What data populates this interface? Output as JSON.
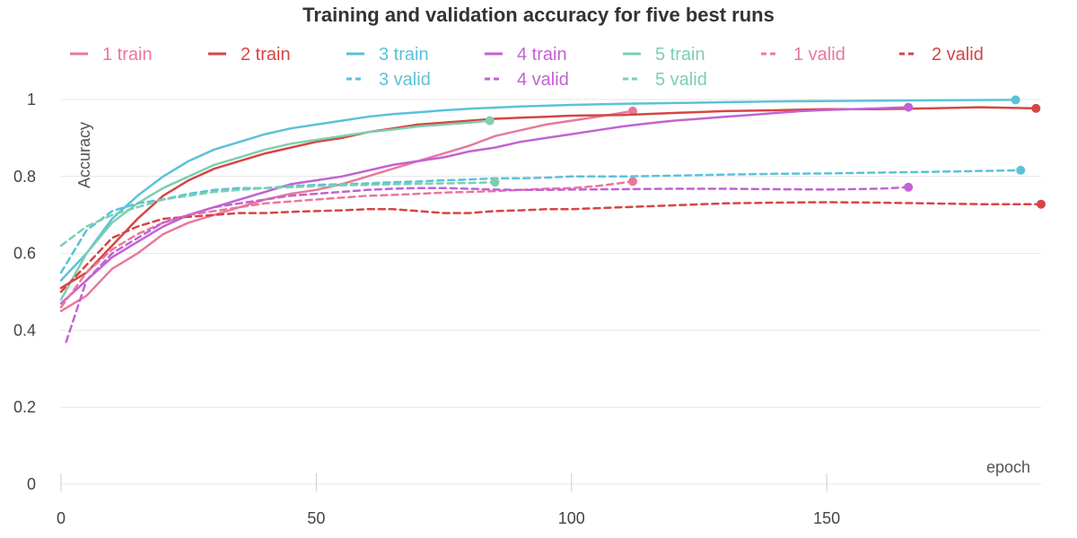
{
  "chart_data": {
    "type": "line",
    "title": "Training and validation accuracy for five best runs",
    "xlabel": "epoch",
    "ylabel": "Accuracy",
    "xlim": [
      0,
      192
    ],
    "ylim": [
      0,
      1.1
    ],
    "xticks": [
      0,
      50,
      100,
      150
    ],
    "yticks": [
      0,
      0.2,
      0.4,
      0.6,
      0.8,
      1
    ],
    "ytick_labels": [
      "0",
      "0.2",
      "0.4",
      "0.6",
      "0.8",
      "1"
    ],
    "grid": "horizontal",
    "legend_position": "top",
    "series": [
      {
        "name": "1 train",
        "color": "#e9789c",
        "dash": "solid",
        "points": [
          [
            0,
            0.45
          ],
          [
            5,
            0.49
          ],
          [
            10,
            0.56
          ],
          [
            15,
            0.6
          ],
          [
            20,
            0.65
          ],
          [
            25,
            0.68
          ],
          [
            30,
            0.7
          ],
          [
            35,
            0.72
          ],
          [
            40,
            0.74
          ],
          [
            45,
            0.755
          ],
          [
            50,
            0.765
          ],
          [
            55,
            0.78
          ],
          [
            60,
            0.8
          ],
          [
            65,
            0.82
          ],
          [
            70,
            0.84
          ],
          [
            75,
            0.86
          ],
          [
            80,
            0.88
          ],
          [
            85,
            0.905
          ],
          [
            90,
            0.92
          ],
          [
            95,
            0.935
          ],
          [
            100,
            0.945
          ],
          [
            105,
            0.955
          ],
          [
            112,
            0.97
          ]
        ]
      },
      {
        "name": "2 train",
        "color": "#d64545",
        "dash": "solid",
        "points": [
          [
            0,
            0.51
          ],
          [
            5,
            0.55
          ],
          [
            10,
            0.62
          ],
          [
            15,
            0.69
          ],
          [
            20,
            0.75
          ],
          [
            25,
            0.79
          ],
          [
            30,
            0.82
          ],
          [
            35,
            0.84
          ],
          [
            40,
            0.86
          ],
          [
            45,
            0.875
          ],
          [
            50,
            0.89
          ],
          [
            55,
            0.9
          ],
          [
            60,
            0.915
          ],
          [
            65,
            0.925
          ],
          [
            70,
            0.935
          ],
          [
            75,
            0.94
          ],
          [
            80,
            0.945
          ],
          [
            85,
            0.95
          ],
          [
            90,
            0.953
          ],
          [
            95,
            0.955
          ],
          [
            100,
            0.958
          ],
          [
            110,
            0.96
          ],
          [
            120,
            0.965
          ],
          [
            130,
            0.97
          ],
          [
            140,
            0.972
          ],
          [
            150,
            0.975
          ],
          [
            160,
            0.975
          ],
          [
            170,
            0.977
          ],
          [
            180,
            0.98
          ],
          [
            191,
            0.977
          ]
        ]
      },
      {
        "name": "3 train",
        "color": "#5bc2d8",
        "dash": "solid",
        "points": [
          [
            0,
            0.53
          ],
          [
            5,
            0.6
          ],
          [
            10,
            0.69
          ],
          [
            15,
            0.75
          ],
          [
            20,
            0.8
          ],
          [
            25,
            0.84
          ],
          [
            30,
            0.87
          ],
          [
            35,
            0.89
          ],
          [
            40,
            0.91
          ],
          [
            45,
            0.925
          ],
          [
            50,
            0.935
          ],
          [
            55,
            0.945
          ],
          [
            60,
            0.955
          ],
          [
            65,
            0.962
          ],
          [
            70,
            0.967
          ],
          [
            75,
            0.972
          ],
          [
            80,
            0.976
          ],
          [
            85,
            0.979
          ],
          [
            90,
            0.982
          ],
          [
            95,
            0.984
          ],
          [
            100,
            0.986
          ],
          [
            110,
            0.989
          ],
          [
            120,
            0.991
          ],
          [
            130,
            0.993
          ],
          [
            140,
            0.995
          ],
          [
            150,
            0.996
          ],
          [
            160,
            0.997
          ],
          [
            170,
            0.998
          ],
          [
            187,
            0.999
          ]
        ]
      },
      {
        "name": "4 train",
        "color": "#c362d4",
        "dash": "solid",
        "points": [
          [
            0,
            0.47
          ],
          [
            5,
            0.53
          ],
          [
            10,
            0.59
          ],
          [
            15,
            0.63
          ],
          [
            20,
            0.67
          ],
          [
            25,
            0.7
          ],
          [
            30,
            0.72
          ],
          [
            35,
            0.74
          ],
          [
            40,
            0.76
          ],
          [
            45,
            0.78
          ],
          [
            50,
            0.79
          ],
          [
            55,
            0.8
          ],
          [
            60,
            0.815
          ],
          [
            65,
            0.83
          ],
          [
            70,
            0.84
          ],
          [
            75,
            0.85
          ],
          [
            80,
            0.865
          ],
          [
            85,
            0.875
          ],
          [
            90,
            0.89
          ],
          [
            95,
            0.9
          ],
          [
            100,
            0.91
          ],
          [
            105,
            0.92
          ],
          [
            110,
            0.93
          ],
          [
            115,
            0.938
          ],
          [
            120,
            0.945
          ],
          [
            125,
            0.95
          ],
          [
            130,
            0.955
          ],
          [
            135,
            0.96
          ],
          [
            140,
            0.965
          ],
          [
            145,
            0.97
          ],
          [
            150,
            0.973
          ],
          [
            155,
            0.975
          ],
          [
            160,
            0.977
          ],
          [
            166,
            0.98
          ]
        ]
      },
      {
        "name": "5 train",
        "color": "#7ccfb0",
        "dash": "solid",
        "points": [
          [
            0,
            0.48
          ],
          [
            5,
            0.6
          ],
          [
            10,
            0.68
          ],
          [
            15,
            0.73
          ],
          [
            20,
            0.77
          ],
          [
            25,
            0.8
          ],
          [
            30,
            0.83
          ],
          [
            35,
            0.85
          ],
          [
            40,
            0.87
          ],
          [
            45,
            0.885
          ],
          [
            50,
            0.895
          ],
          [
            55,
            0.905
          ],
          [
            60,
            0.915
          ],
          [
            65,
            0.922
          ],
          [
            70,
            0.93
          ],
          [
            75,
            0.935
          ],
          [
            80,
            0.94
          ],
          [
            84,
            0.945
          ]
        ]
      },
      {
        "name": "1 valid",
        "color": "#e9789c",
        "dash": "dashed",
        "points": [
          [
            0,
            0.46
          ],
          [
            5,
            0.55
          ],
          [
            10,
            0.61
          ],
          [
            15,
            0.65
          ],
          [
            20,
            0.68
          ],
          [
            25,
            0.7
          ],
          [
            30,
            0.71
          ],
          [
            35,
            0.72
          ],
          [
            40,
            0.73
          ],
          [
            45,
            0.735
          ],
          [
            50,
            0.74
          ],
          [
            55,
            0.745
          ],
          [
            60,
            0.75
          ],
          [
            65,
            0.752
          ],
          [
            70,
            0.755
          ],
          [
            75,
            0.758
          ],
          [
            80,
            0.76
          ],
          [
            85,
            0.762
          ],
          [
            90,
            0.765
          ],
          [
            95,
            0.768
          ],
          [
            100,
            0.77
          ],
          [
            105,
            0.775
          ],
          [
            112,
            0.787
          ]
        ]
      },
      {
        "name": "2 valid",
        "color": "#d64545",
        "dash": "dashed",
        "points": [
          [
            0,
            0.5
          ],
          [
            5,
            0.57
          ],
          [
            10,
            0.64
          ],
          [
            15,
            0.67
          ],
          [
            20,
            0.69
          ],
          [
            25,
            0.695
          ],
          [
            30,
            0.7
          ],
          [
            35,
            0.705
          ],
          [
            40,
            0.705
          ],
          [
            45,
            0.708
          ],
          [
            50,
            0.71
          ],
          [
            55,
            0.712
          ],
          [
            60,
            0.715
          ],
          [
            65,
            0.715
          ],
          [
            70,
            0.71
          ],
          [
            75,
            0.705
          ],
          [
            80,
            0.705
          ],
          [
            85,
            0.71
          ],
          [
            90,
            0.712
          ],
          [
            95,
            0.715
          ],
          [
            100,
            0.715
          ],
          [
            110,
            0.72
          ],
          [
            120,
            0.725
          ],
          [
            130,
            0.73
          ],
          [
            140,
            0.732
          ],
          [
            150,
            0.733
          ],
          [
            160,
            0.732
          ],
          [
            170,
            0.73
          ],
          [
            180,
            0.728
          ],
          [
            192,
            0.728
          ]
        ]
      },
      {
        "name": "3 valid",
        "color": "#5bc2d8",
        "dash": "dashed",
        "points": [
          [
            0,
            0.55
          ],
          [
            5,
            0.66
          ],
          [
            10,
            0.71
          ],
          [
            15,
            0.73
          ],
          [
            20,
            0.74
          ],
          [
            25,
            0.755
          ],
          [
            30,
            0.765
          ],
          [
            35,
            0.77
          ],
          [
            40,
            0.77
          ],
          [
            45,
            0.775
          ],
          [
            50,
            0.778
          ],
          [
            55,
            0.78
          ],
          [
            60,
            0.782
          ],
          [
            65,
            0.785
          ],
          [
            70,
            0.787
          ],
          [
            75,
            0.79
          ],
          [
            80,
            0.792
          ],
          [
            85,
            0.795
          ],
          [
            90,
            0.795
          ],
          [
            95,
            0.797
          ],
          [
            100,
            0.8
          ],
          [
            110,
            0.8
          ],
          [
            120,
            0.802
          ],
          [
            130,
            0.805
          ],
          [
            140,
            0.807
          ],
          [
            150,
            0.808
          ],
          [
            160,
            0.81
          ],
          [
            170,
            0.812
          ],
          [
            188,
            0.816
          ]
        ]
      },
      {
        "name": "4 valid",
        "color": "#c362d4",
        "dash": "dashed",
        "points": [
          [
            1,
            0.37
          ],
          [
            5,
            0.53
          ],
          [
            10,
            0.6
          ],
          [
            15,
            0.64
          ],
          [
            20,
            0.68
          ],
          [
            25,
            0.7
          ],
          [
            30,
            0.72
          ],
          [
            35,
            0.73
          ],
          [
            40,
            0.74
          ],
          [
            45,
            0.75
          ],
          [
            50,
            0.755
          ],
          [
            55,
            0.76
          ],
          [
            60,
            0.765
          ],
          [
            65,
            0.768
          ],
          [
            70,
            0.77
          ],
          [
            75,
            0.77
          ],
          [
            80,
            0.768
          ],
          [
            85,
            0.766
          ],
          [
            90,
            0.765
          ],
          [
            95,
            0.765
          ],
          [
            100,
            0.766
          ],
          [
            110,
            0.767
          ],
          [
            120,
            0.768
          ],
          [
            130,
            0.768
          ],
          [
            140,
            0.767
          ],
          [
            150,
            0.766
          ],
          [
            160,
            0.768
          ],
          [
            166,
            0.772
          ]
        ]
      },
      {
        "name": "5 valid",
        "color": "#7ccfb0",
        "dash": "dashed",
        "points": [
          [
            0,
            0.62
          ],
          [
            5,
            0.67
          ],
          [
            10,
            0.7
          ],
          [
            15,
            0.72
          ],
          [
            20,
            0.74
          ],
          [
            25,
            0.75
          ],
          [
            30,
            0.76
          ],
          [
            35,
            0.765
          ],
          [
            40,
            0.77
          ],
          [
            45,
            0.772
          ],
          [
            50,
            0.775
          ],
          [
            55,
            0.777
          ],
          [
            60,
            0.778
          ],
          [
            65,
            0.78
          ],
          [
            70,
            0.781
          ],
          [
            75,
            0.782
          ],
          [
            80,
            0.783
          ],
          [
            85,
            0.785
          ]
        ]
      }
    ]
  }
}
